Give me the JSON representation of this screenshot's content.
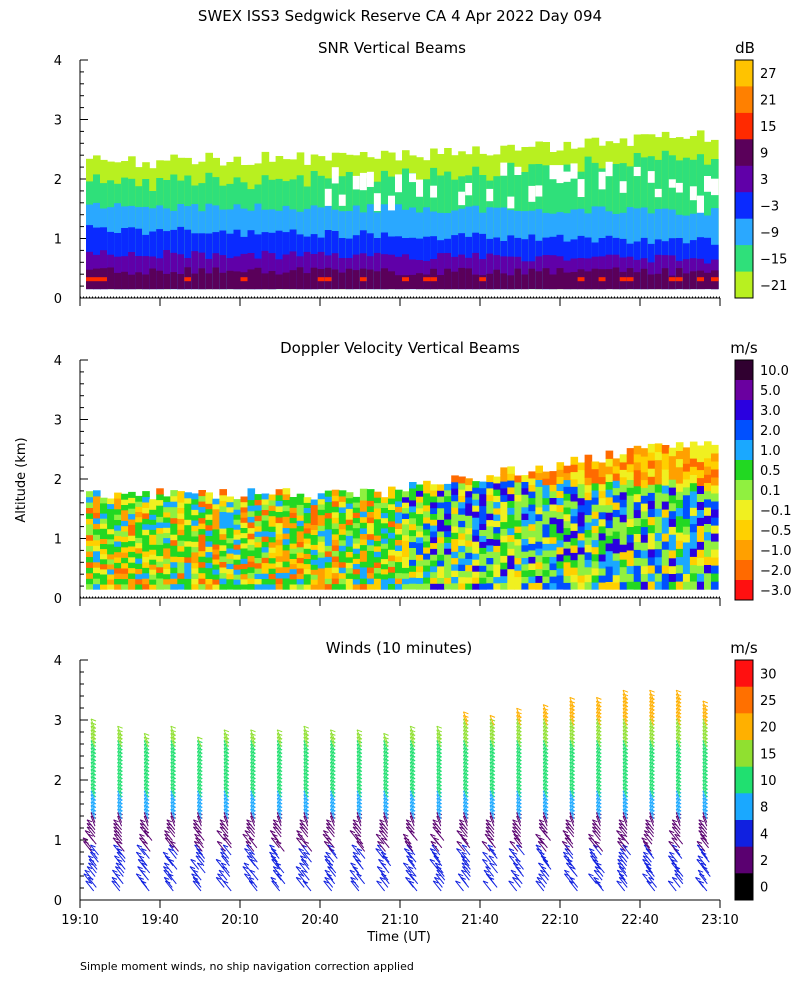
{
  "figure": {
    "title": "SWEX ISS3 Sedgwick Reserve CA   4 Apr 2022 Day 094",
    "ylabel": "Altitude (km)",
    "xlabel": "Time (UT)",
    "footnote": "Simple moment winds, no ship navigation correction applied"
  },
  "time_ticks": [
    "19:10",
    "19:40",
    "20:10",
    "20:40",
    "21:10",
    "21:40",
    "22:10",
    "22:40",
    "23:10"
  ],
  "altitude_ticks": [
    "0",
    "1",
    "2",
    "3",
    "4"
  ],
  "chart_data": [
    {
      "type": "heatmap",
      "title": "SNR Vertical Beams",
      "x_range": [
        "19:10",
        "23:10"
      ],
      "ylim": [
        0,
        4
      ],
      "colorbar": {
        "unit": "dB",
        "labels": [
          "27",
          "21",
          "15",
          "9",
          "3",
          "−3",
          "−9",
          "−15",
          "−21"
        ],
        "colors": [
          "#ffc300",
          "#ff8000",
          "#ff2a00",
          "#5a005a",
          "#6000a8",
          "#0a2aff",
          "#2aa8ff",
          "#2fe07a",
          "#b8f020",
          "#ffffff"
        ]
      },
      "profile": [
        {
          "top_km": 2.35,
          "value_band": "-21 to -15"
        },
        {
          "top_km": 2.0,
          "value_band": "-15 to -9"
        },
        {
          "top_km": 1.5,
          "value_band": "-9 to -3"
        },
        {
          "top_km": 1.1,
          "value_band": "-3 to 3"
        },
        {
          "top_km": 0.7,
          "value_band": "3 to 9"
        },
        {
          "top_km": 0.35,
          "value_band": "15 to 21"
        }
      ]
    },
    {
      "type": "heatmap",
      "title": "Doppler Velocity Vertical Beams",
      "x_range": [
        "19:10",
        "23:10"
      ],
      "ylim": [
        0,
        4
      ],
      "colorbar": {
        "unit": "m/s",
        "labels": [
          "10.0",
          "5.0",
          "3.0",
          "2.0",
          "1.0",
          "0.5",
          "0.1",
          "−0.1",
          "−0.5",
          "−1.0",
          "−2.0",
          "−3.0"
        ],
        "colors": [
          "#300030",
          "#6a00a0",
          "#2a00e0",
          "#0050ff",
          "#1aa8ff",
          "#22d822",
          "#90f040",
          "#f0f020",
          "#ffd000",
          "#ffa000",
          "#ff6a00",
          "#ff1010"
        ]
      }
    },
    {
      "type": "scatter",
      "title": "Winds (10 minutes)",
      "x_range": [
        "19:10",
        "23:10"
      ],
      "ylim": [
        0,
        4
      ],
      "colorbar": {
        "unit": "m/s",
        "labels": [
          "30",
          "25",
          "20",
          "15",
          "10",
          "8",
          "4",
          "2",
          "0"
        ],
        "colors": [
          "#ff1010",
          "#ff7000",
          "#ffb000",
          "#90e030",
          "#20e070",
          "#1aa8ff",
          "#1020e0",
          "#5a0070",
          "#000000"
        ]
      },
      "profile_times": [
        "19:10",
        "19:20",
        "19:30",
        "19:40",
        "19:50",
        "20:00",
        "20:10",
        "20:20",
        "20:30",
        "20:40",
        "20:50",
        "21:00",
        "21:10",
        "21:20",
        "21:30",
        "21:40",
        "21:50",
        "22:00",
        "22:10",
        "22:20",
        "22:30",
        "22:40",
        "22:50",
        "23:00"
      ],
      "profile_tops_km": [
        2.9,
        2.75,
        2.65,
        2.75,
        2.6,
        2.7,
        2.7,
        2.7,
        2.75,
        2.7,
        2.7,
        2.65,
        2.75,
        2.75,
        3.0,
        2.95,
        3.05,
        3.15,
        3.25,
        3.25,
        3.35,
        3.35,
        3.35,
        3.2
      ]
    }
  ]
}
